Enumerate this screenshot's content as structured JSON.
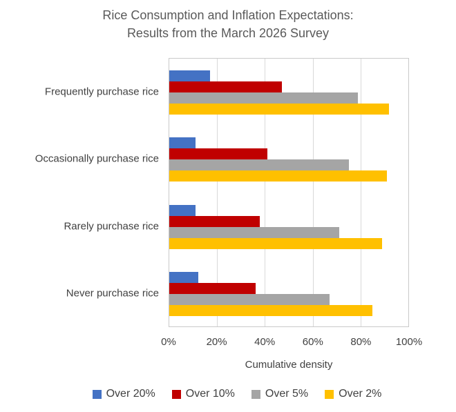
{
  "title": {
    "line1": "Rice Consumption and Inflation Expectations:",
    "line2": "Results from the March 2026 Survey"
  },
  "colors": {
    "series_blue": "#4472C4",
    "series_red": "#C00000",
    "series_gray": "#A5A5A5",
    "series_yellow": "#FFC000",
    "gridline": "#D9D9D9",
    "plot_border": "#C9C9C9",
    "title_text": "#595959",
    "label_text": "#404040"
  },
  "chart_data": {
    "type": "bar",
    "orientation": "horizontal",
    "title": "Rice Consumption and Inflation Expectations: Results from the March 2026 Survey",
    "categories": [
      "Frequently purchase rice",
      "Occasionally purchase rice",
      "Rarely purchase rice",
      "Never purchase rice"
    ],
    "series": [
      {
        "name": "Over 20%",
        "color": "#4472C4",
        "values": [
          17,
          11,
          11,
          12
        ]
      },
      {
        "name": "Over 10%",
        "color": "#C00000",
        "values": [
          47,
          41,
          38,
          36
        ]
      },
      {
        "name": "Over 5%",
        "color": "#A5A5A5",
        "values": [
          79,
          75,
          71,
          67
        ]
      },
      {
        "name": "Over 2%",
        "color": "#FFC000",
        "values": [
          92,
          91,
          89,
          85
        ]
      }
    ],
    "xlabel": "Cumulative density",
    "ylabel": "",
    "xlim": [
      0,
      100
    ],
    "xticks": [
      "0%",
      "20%",
      "40%",
      "60%",
      "80%",
      "100%"
    ],
    "grid": true,
    "legend_position": "bottom"
  }
}
